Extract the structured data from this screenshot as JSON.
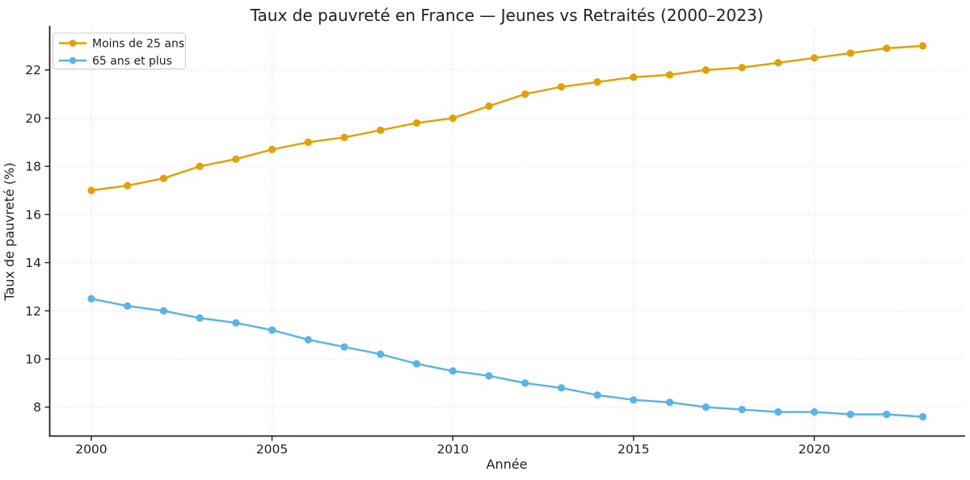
{
  "chart_data": {
    "type": "line",
    "title": "Taux de pauvreté en France — Jeunes vs Retraités (2000–2023)",
    "xlabel": "Année",
    "ylabel": "Taux de pauvreté (%)",
    "x": [
      2000,
      2001,
      2002,
      2003,
      2004,
      2005,
      2006,
      2007,
      2008,
      2009,
      2010,
      2011,
      2012,
      2013,
      2014,
      2015,
      2016,
      2017,
      2018,
      2019,
      2020,
      2021,
      2022,
      2023
    ],
    "series": [
      {
        "name": "Moins de 25 ans",
        "color": "#E69F00",
        "values": [
          17.0,
          17.2,
          17.5,
          18.0,
          18.3,
          18.7,
          19.0,
          19.2,
          19.5,
          19.8,
          20.0,
          20.5,
          21.0,
          21.3,
          21.5,
          21.7,
          21.8,
          22.0,
          22.1,
          22.3,
          22.5,
          22.7,
          22.9,
          23.0
        ]
      },
      {
        "name": "65 ans et plus",
        "color": "#56B4E9",
        "values": [
          12.5,
          12.2,
          12.0,
          11.7,
          11.5,
          11.2,
          10.8,
          10.5,
          10.2,
          9.8,
          9.5,
          9.3,
          9.0,
          8.8,
          8.5,
          8.3,
          8.2,
          8.0,
          7.9,
          7.8,
          7.8,
          7.7,
          7.7,
          7.6
        ]
      }
    ],
    "xlim": [
      1998.85,
      2024.15
    ],
    "ylim": [
      6.8,
      23.8
    ],
    "xticks": [
      2000,
      2005,
      2010,
      2015,
      2020
    ],
    "yticks": [
      8,
      10,
      12,
      14,
      16,
      18,
      20,
      22
    ],
    "grid": true,
    "grid_style": "dashed",
    "legend_position": "upper left",
    "colors": {
      "grid": "#e3e3e3",
      "axis": "#1f1f1f",
      "background": "#ffffff",
      "legend_border": "#cccccc"
    }
  }
}
